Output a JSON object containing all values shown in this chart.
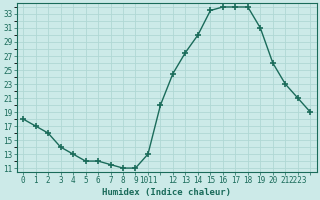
{
  "x_vals": [
    0,
    1,
    2,
    3,
    4,
    5,
    6,
    7,
    8,
    9,
    10,
    11,
    12,
    13,
    14,
    15,
    16,
    17,
    18,
    19,
    20,
    21,
    22,
    23
  ],
  "y_vals": [
    18,
    17,
    16,
    14,
    13,
    12,
    12,
    11.5,
    11,
    11,
    13,
    20,
    24.5,
    27.5,
    30,
    33.5,
    34,
    34,
    34,
    31,
    26,
    23,
    21,
    19
  ],
  "title": "",
  "xlabel": "Humidex (Indice chaleur)",
  "ylabel": "",
  "ylim_min": 10.5,
  "ylim_max": 34.5,
  "xlim_min": -0.5,
  "xlim_max": 23.5,
  "yticks": [
    11,
    13,
    15,
    17,
    19,
    21,
    23,
    25,
    27,
    29,
    31,
    33
  ],
  "xtick_labels": [
    "0",
    "1",
    "2",
    "3",
    "4",
    "5",
    "6",
    "7",
    "8",
    "9",
    "1011",
    "12",
    "13",
    "14",
    "15",
    "16",
    "17",
    "18",
    "19",
    "20",
    "21",
    "2223"
  ],
  "line_color": "#1a6b5a",
  "bg_color": "#cceae8",
  "grid_color": "#b0d8d4",
  "marker": "+",
  "marker_size": 4,
  "marker_lw": 1.2,
  "line_width": 1.0,
  "xlabel_fontsize": 6.5,
  "tick_fontsize": 5.5
}
